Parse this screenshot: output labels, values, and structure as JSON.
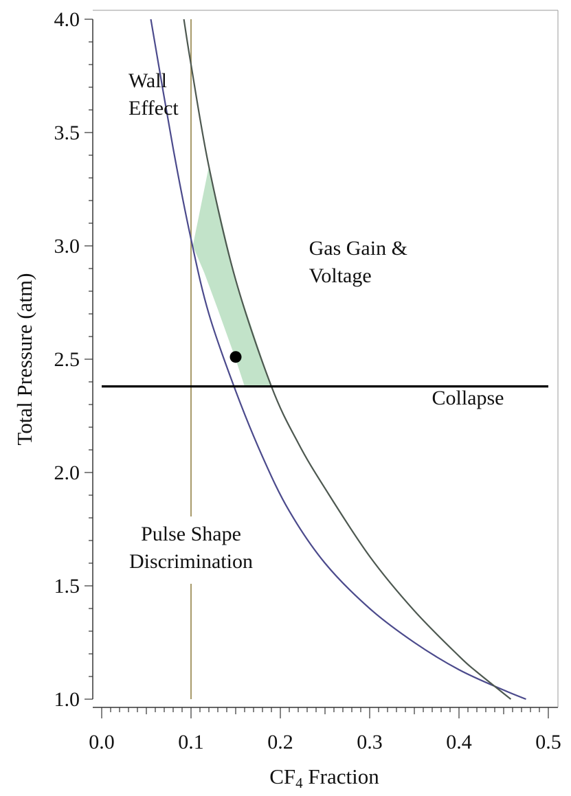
{
  "chart_data": {
    "type": "line",
    "title": "",
    "xlabel_main": "CF",
    "xlabel_sub": "4",
    "xlabel_rest": " Fraction",
    "ylabel": "Total Pressure (atm)",
    "xlim": [
      0.0,
      0.5
    ],
    "ylim": [
      1.0,
      4.0
    ],
    "xticks": [
      "0.0",
      "0.1",
      "0.2",
      "0.3",
      "0.4",
      "0.5"
    ],
    "yticks": [
      "1.0",
      "1.5",
      "2.0",
      "2.5",
      "3.0",
      "3.5",
      "4.0"
    ],
    "colors": {
      "wall_curve": "#4b4a8c",
      "gain_curve": "#4d5850",
      "psd_line": "#a79a6a",
      "allowed_region": "#c2e3c9",
      "collapse_line": "#000000",
      "point": "#000000"
    },
    "series": [
      {
        "name": "Wall Effect limit",
        "x": [
          0.055,
          0.08,
          0.1,
          0.12,
          0.15,
          0.18,
          0.21,
          0.25,
          0.3,
          0.35,
          0.4,
          0.45,
          0.475
        ],
        "y": [
          4.0,
          3.43,
          3.03,
          2.7,
          2.36,
          2.07,
          1.83,
          1.6,
          1.4,
          1.25,
          1.13,
          1.04,
          1.0
        ]
      },
      {
        "name": "Gas Gain & Voltage limit",
        "x": [
          0.092,
          0.1,
          0.12,
          0.15,
          0.19,
          0.22,
          0.25,
          0.3,
          0.35,
          0.4,
          0.42,
          0.458
        ],
        "y": [
          4.0,
          3.8,
          3.35,
          2.85,
          2.38,
          2.13,
          1.93,
          1.63,
          1.39,
          1.19,
          1.12,
          1.0
        ]
      },
      {
        "name": "Pulse Shape Discrimination limit",
        "x": [
          0.1,
          0.1
        ],
        "y": [
          1.0,
          4.0
        ]
      },
      {
        "name": "Collapse limit",
        "x": [
          0.0,
          0.5
        ],
        "y": [
          2.38,
          2.38
        ]
      }
    ],
    "allowed_region": {
      "x": [
        0.102,
        0.102,
        0.12,
        0.15,
        0.19,
        0.16,
        0.15,
        0.13,
        0.115,
        0.102
      ],
      "y": [
        3.75,
        3.0,
        3.35,
        2.85,
        2.38,
        2.38,
        2.5,
        2.72,
        2.88,
        3.0
      ]
    },
    "point": {
      "x": 0.15,
      "y": 2.51,
      "label": ""
    },
    "annotations": [
      {
        "id": "wall-effect",
        "lines": [
          "Wall",
          "Effect"
        ],
        "x": 0.03,
        "y": 3.7
      },
      {
        "id": "gas-gain-voltage",
        "lines": [
          "Gas Gain &",
          "Voltage"
        ],
        "x": 0.232,
        "y": 2.96
      },
      {
        "id": "collapse",
        "lines": [
          "Collapse"
        ],
        "x": 0.35,
        "y": 2.3
      },
      {
        "id": "pulse-shape",
        "lines": [
          "Pulse Shape",
          "Discrimination"
        ],
        "x": 0.1,
        "y": 1.7
      }
    ]
  }
}
